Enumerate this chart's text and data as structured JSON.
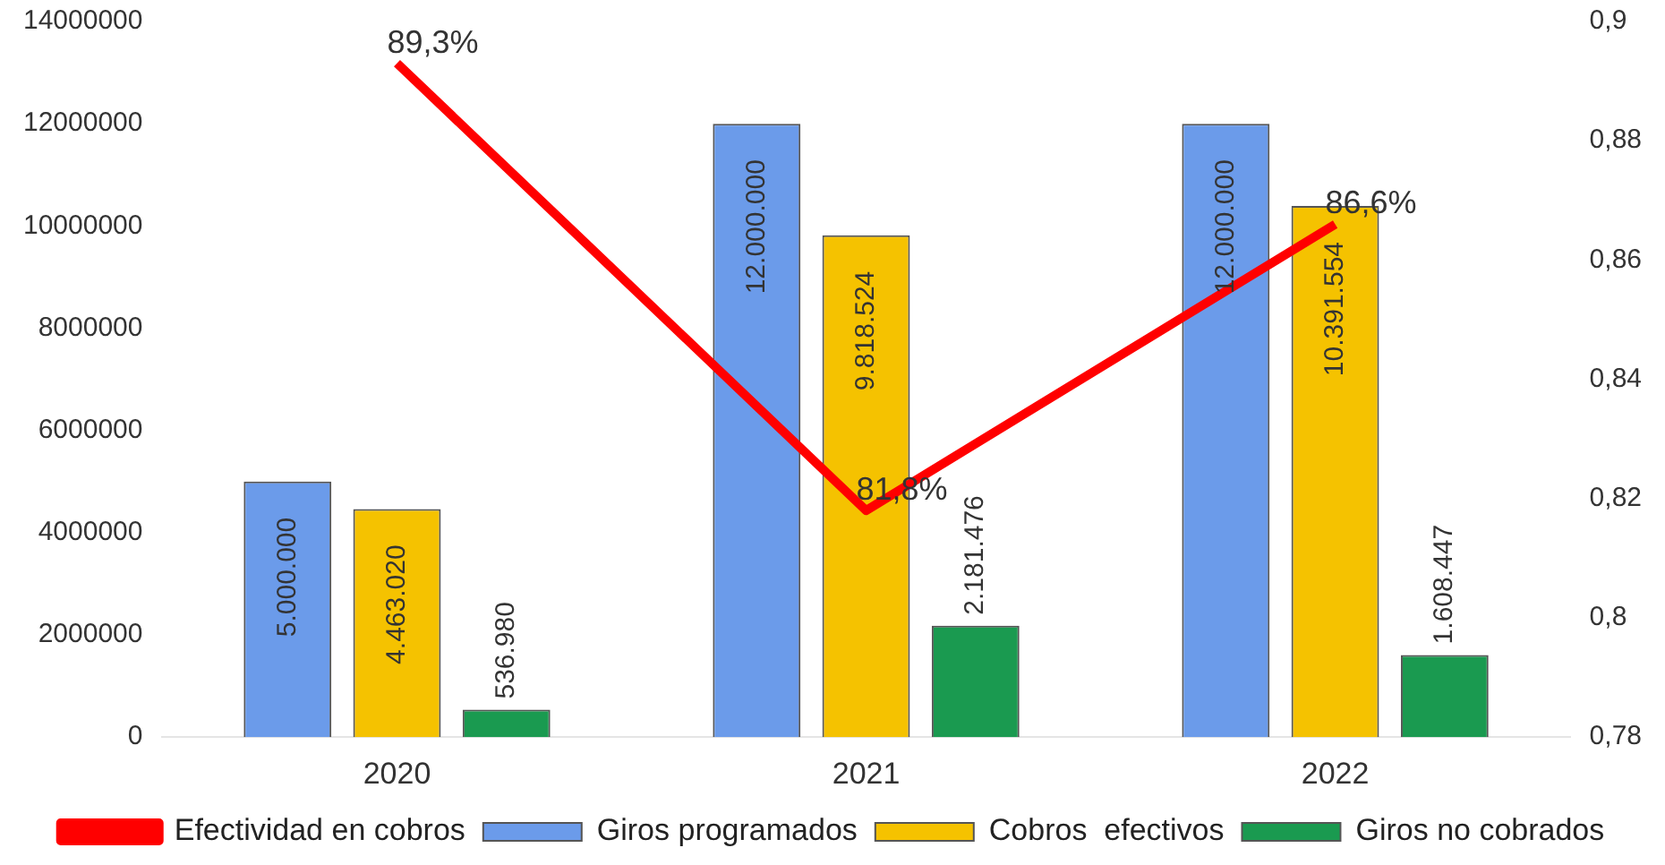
{
  "chart_data": {
    "type": "bar",
    "categories": [
      "2020",
      "2021",
      "2022"
    ],
    "series": [
      {
        "name": "Giros programados",
        "color": "#6b9bea",
        "values": [
          5000000,
          12000000,
          12000000
        ],
        "value_labels": [
          "5.000.000",
          "12.000.000",
          "12.000.000"
        ]
      },
      {
        "name": "Cobros  efectivos",
        "color": "#f5c200",
        "values": [
          4463020,
          9818524,
          10391554
        ],
        "value_labels": [
          "4.463.020",
          "9.818.524",
          "10.391.554"
        ]
      },
      {
        "name": "Giros no cobrados",
        "color": "#1a9a50",
        "values": [
          536980,
          2181476,
          1608447
        ],
        "value_labels": [
          "536.980",
          "2.181.476",
          "1.608.447"
        ]
      },
      {
        "name": "Efectividad en cobros",
        "type": "line",
        "axis": "y2",
        "color": "#ff0000",
        "values": [
          0.893,
          0.818,
          0.866
        ],
        "value_labels": [
          "89,3%",
          "81,8%",
          "86,6%"
        ]
      }
    ],
    "ylim": [
      0,
      14000000
    ],
    "yticks": [
      0,
      2000000,
      4000000,
      6000000,
      8000000,
      10000000,
      12000000,
      14000000
    ],
    "y2lim": [
      0.78,
      0.9
    ],
    "y2ticks": [
      {
        "value": 0.78,
        "label": "0,78"
      },
      {
        "value": 0.8,
        "label": "0,8"
      },
      {
        "value": 0.82,
        "label": "0,82"
      },
      {
        "value": 0.84,
        "label": "0,84"
      },
      {
        "value": 0.86,
        "label": "0,86"
      },
      {
        "value": 0.88,
        "label": "0,88"
      },
      {
        "value": 0.9,
        "label": "0,9"
      }
    ],
    "grid": false,
    "legend": "bottom",
    "marker": "none",
    "line_style": "solid"
  }
}
